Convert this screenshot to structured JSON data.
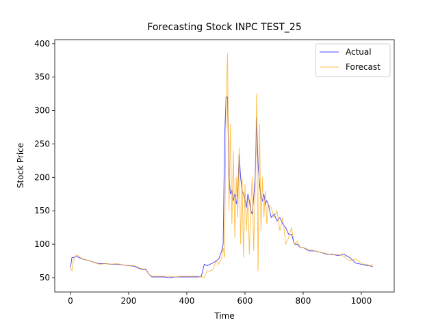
{
  "chart_data": {
    "type": "line",
    "title": "Forecasting Stock INPC TEST_25",
    "xlabel": "Time",
    "ylabel": "Stock Price",
    "x": [
      0,
      5,
      10,
      20,
      30,
      40,
      50,
      60,
      80,
      100,
      120,
      140,
      160,
      180,
      200,
      220,
      240,
      250,
      260,
      270,
      280,
      300,
      320,
      340,
      360,
      380,
      400,
      420,
      440,
      450,
      460,
      470,
      480,
      490,
      500,
      510,
      520,
      525,
      530,
      535,
      540,
      545,
      550,
      555,
      560,
      565,
      570,
      575,
      580,
      585,
      590,
      595,
      600,
      605,
      610,
      615,
      620,
      625,
      630,
      635,
      640,
      645,
      650,
      655,
      660,
      665,
      670,
      675,
      680,
      690,
      700,
      710,
      720,
      730,
      740,
      750,
      760,
      770,
      780,
      790,
      800,
      820,
      840,
      860,
      880,
      900,
      920,
      940,
      960,
      980,
      1000,
      1010,
      1020,
      1030,
      1040
    ],
    "series": [
      {
        "name": "Actual",
        "color": "#0000ff",
        "values": [
          65,
          80,
          80,
          82,
          80,
          78,
          77,
          76,
          73,
          71,
          71,
          70,
          70,
          69,
          68,
          67,
          63,
          62,
          62,
          55,
          51,
          51,
          51,
          50,
          51,
          51,
          51,
          51,
          51,
          52,
          70,
          68,
          70,
          72,
          75,
          78,
          90,
          100,
          260,
          320,
          320,
          200,
          175,
          180,
          165,
          175,
          160,
          175,
          235,
          200,
          180,
          175,
          165,
          155,
          175,
          165,
          150,
          145,
          170,
          200,
          290,
          220,
          190,
          170,
          165,
          175,
          160,
          165,
          160,
          140,
          145,
          135,
          140,
          130,
          125,
          115,
          115,
          100,
          100,
          95,
          95,
          90,
          90,
          88,
          85,
          85,
          83,
          85,
          80,
          72,
          70,
          69,
          68,
          68,
          66
        ]
      },
      {
        "name": "Forecast",
        "color": "#ffa500",
        "values": [
          65,
          60,
          75,
          84,
          82,
          78,
          77,
          76,
          73,
          70,
          71,
          70,
          71,
          69,
          68,
          68,
          64,
          63,
          63,
          55,
          52,
          52,
          52,
          52,
          51,
          52,
          52,
          52,
          52,
          51,
          50,
          60,
          60,
          62,
          75,
          70,
          80,
          95,
          80,
          320,
          385,
          150,
          280,
          130,
          240,
          110,
          200,
          140,
          245,
          100,
          200,
          80,
          190,
          120,
          170,
          85,
          160,
          200,
          90,
          180,
          325,
          60,
          280,
          120,
          200,
          140,
          180,
          130,
          160,
          155,
          140,
          150,
          120,
          140,
          100,
          110,
          125,
          100,
          105,
          95,
          95,
          92,
          90,
          88,
          86,
          84,
          85,
          82,
          75,
          78,
          72,
          70,
          70,
          67,
          70
        ]
      }
    ],
    "xlim": [
      -54,
      1113
    ],
    "ylim": [
      28.5,
      406
    ],
    "xticks": [
      0,
      200,
      400,
      600,
      800,
      1000
    ],
    "yticks": [
      50,
      100,
      150,
      200,
      250,
      300,
      350,
      400
    ],
    "legend": "upper right"
  }
}
